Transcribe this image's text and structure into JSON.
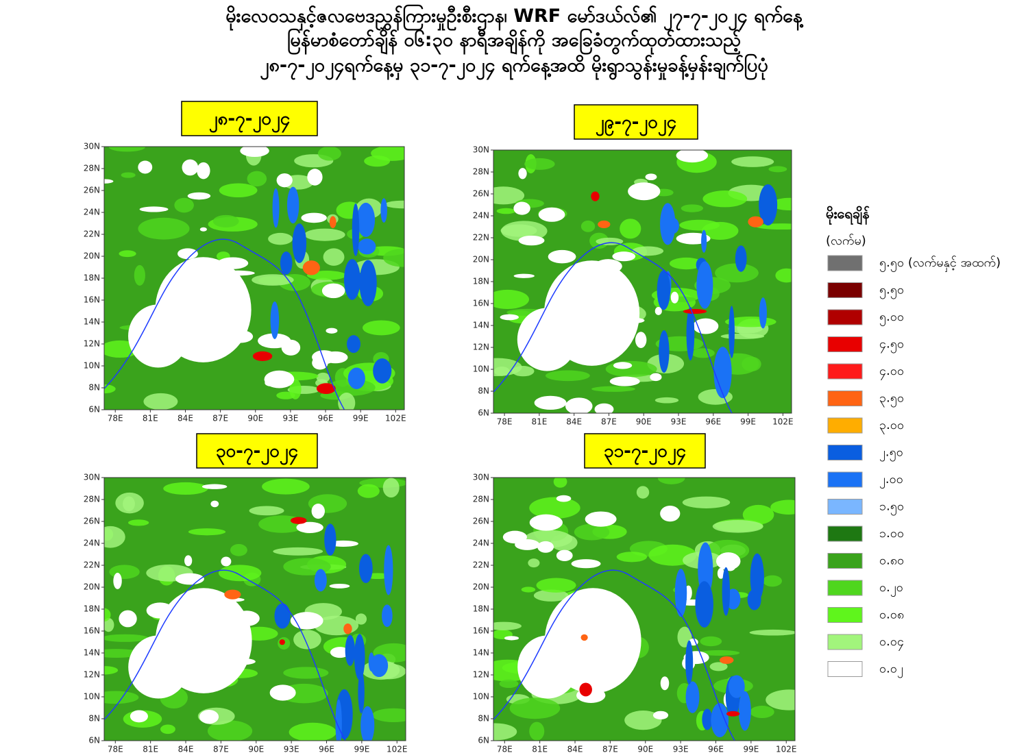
{
  "header": {
    "lines": [
      "မိုးလေဝသနှင့်ဇလဗေဒညွှန်ကြားမှုဦးစီးဌာန၊ WRF မော်ဒယ်လ်၏ ၂၇-၇-၂၀၂၄ ရက်နေ့",
      "မြန်မာစံတော်ချိန် ၀၆:၃၀ နာရီအချိန်ကို အခြေခံတွက်ထုတ်ထားသည့်",
      "၂၈-၇-၂၀၂၄ရက်နေ့မှ ၃၁-၇-၂၀၂၄ ရက်နေ့အထိ မိုးရွာသွန်းမှုခန့်မှန်းချက်ပြပုံ"
    ]
  },
  "panels": [
    {
      "date": "၂၈-၇-၂၀၂၄"
    },
    {
      "date": "၂၉-၇-၂၀၂၄"
    },
    {
      "date": "၃၀-၇-၂၀၂၄"
    },
    {
      "date": "၃၁-၇-၂၀၂၄"
    }
  ],
  "map_axes": {
    "lat_labels": [
      "6N",
      "8N",
      "10N",
      "12N",
      "14N",
      "16N",
      "18N",
      "20N",
      "22N",
      "24N",
      "26N",
      "28N",
      "30N"
    ],
    "lon_labels": [
      "78E",
      "81E",
      "84E",
      "87E",
      "90E",
      "93E",
      "96E",
      "99E",
      "102E"
    ]
  },
  "legend": {
    "title": "မိုးရေချိန်",
    "unit": "(လက်မ)",
    "items": [
      {
        "label": "၅.၅၀ (လက်မနှင့် အထက်)",
        "color": "#707070"
      },
      {
        "label": "၅.၅၀",
        "color": "#7a0000"
      },
      {
        "label": "၅.၀၀",
        "color": "#b00000"
      },
      {
        "label": "၄.၅၀",
        "color": "#e80000"
      },
      {
        "label": "၄.၀၀",
        "color": "#ff1a1a"
      },
      {
        "label": "၃.၅၀",
        "color": "#ff6414"
      },
      {
        "label": "၃.၀၀",
        "color": "#ffad00"
      },
      {
        "label": "၂.၅၀",
        "color": "#0a5ee0"
      },
      {
        "label": "၂.၀၀",
        "color": "#1a72f5"
      },
      {
        "label": "၁.၅၀",
        "color": "#7ab6ff"
      },
      {
        "label": "၁.၀၀",
        "color": "#1e7812"
      },
      {
        "label": "၀.၈၀",
        "color": "#3aa31c"
      },
      {
        "label": "၀.၂၀",
        "color": "#4fd61e"
      },
      {
        "label": "၀.၀၈",
        "color": "#5ff51c"
      },
      {
        "label": "၀.၀၄",
        "color": "#a2f57c"
      },
      {
        "label": "၀.၀၂",
        "color": "#ffffff"
      }
    ]
  }
}
